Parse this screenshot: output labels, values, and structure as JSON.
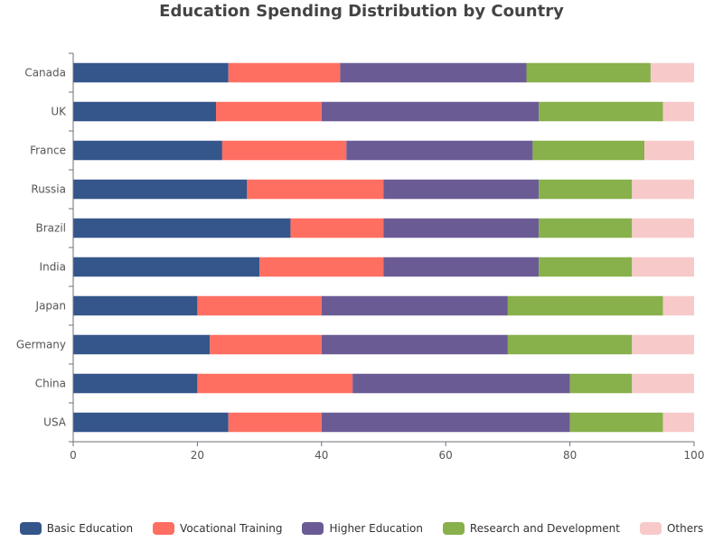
{
  "chart_data": {
    "type": "bar",
    "orientation": "horizontal",
    "stacked": true,
    "title": "Education Spending Distribution by Country",
    "categories": [
      "USA",
      "China",
      "Germany",
      "Japan",
      "India",
      "Brazil",
      "Russia",
      "France",
      "UK",
      "Canada"
    ],
    "series": [
      {
        "name": "Basic Education",
        "color": "#34568b",
        "values": [
          25,
          20,
          22,
          20,
          30,
          35,
          28,
          24,
          23,
          25
        ]
      },
      {
        "name": "Vocational Training",
        "color": "#ff6f61",
        "values": [
          15,
          25,
          18,
          20,
          20,
          15,
          22,
          20,
          17,
          18
        ]
      },
      {
        "name": "Higher Education",
        "color": "#6b5b95",
        "values": [
          40,
          35,
          30,
          30,
          25,
          25,
          25,
          30,
          35,
          30
        ]
      },
      {
        "name": "Research and Development",
        "color": "#88b04b",
        "values": [
          15,
          10,
          20,
          25,
          15,
          15,
          15,
          18,
          20,
          20
        ]
      },
      {
        "name": "Others",
        "color": "#f7cac9",
        "values": [
          5,
          10,
          10,
          5,
          10,
          10,
          10,
          8,
          5,
          7
        ]
      }
    ],
    "xlim": [
      0,
      100
    ],
    "xticks": [
      "0",
      "20",
      "40",
      "60",
      "80",
      "100"
    ],
    "grid": false,
    "legend_position": "bottom"
  }
}
